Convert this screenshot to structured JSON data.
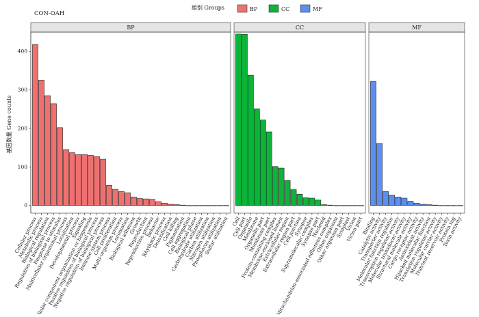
{
  "chart_data": {
    "type": "bar",
    "title": "CON-OAH",
    "ylabel": "基因数量  Gene counts",
    "ylim": [
      -20,
      450
    ],
    "yticks": [
      0,
      100,
      200,
      300,
      400
    ],
    "grid": false,
    "legend": {
      "title": "组别  Groups",
      "position": "top",
      "entries": [
        {
          "name": "BP",
          "color": "#f07070"
        },
        {
          "name": "CC",
          "color": "#0cb43a"
        },
        {
          "name": "MF",
          "color": "#5b8ff0"
        }
      ]
    },
    "panels": [
      {
        "name": "BP",
        "color": "#f07070",
        "categories": [
          "Cellular process",
          "Metabolic process",
          "Biological regulation",
          "Regulation of biological process",
          "Response to stimulus",
          "Multicellular organismal process",
          "Localization",
          "Developmental process",
          "Signaling",
          "Cellular component organization or biogenesis",
          "Positive regulation of biological process",
          "Negative regulation of biological process",
          "Immune system process",
          "Cell proliferation",
          "Multi-organism process",
          "Locomotion",
          "Biological adhesion",
          "Growth",
          "Reproduction",
          "Reproductive process",
          "Behavior",
          "Rhythmic process",
          "Detoxification",
          "Cell killing",
          "Pigmentation",
          "Cell aggregation",
          "Biological phase",
          "Carbohydrate utilization",
          "Carbon utilization",
          "Nitrogen utilization",
          "Phosphorus utilization",
          "Sulfur utilization"
        ],
        "values": [
          418,
          325,
          285,
          264,
          202,
          145,
          137,
          132,
          132,
          130,
          127,
          120,
          52,
          42,
          36,
          33,
          22,
          18,
          17,
          16,
          10,
          6,
          3,
          2,
          1,
          0,
          0,
          0,
          0,
          0,
          0,
          0
        ]
      },
      {
        "name": "CC",
        "color": "#0cb43a",
        "categories": [
          "Cell",
          "Cell part",
          "Organelle",
          "Membrane",
          "Organelle part",
          "Membrane part",
          "Protein-containing complex",
          "Membrane-enclosed lumen",
          "Extracellular region",
          "Extracellular region part",
          "Cell junction",
          "Synapse",
          "Supramolecular complex",
          "Synapse part",
          "Nucleoid",
          "Mitochondrion-associated adherens complex",
          "Other organism",
          "Other organism part",
          "Symplast",
          "Virion",
          "Virion part"
        ],
        "values": [
          445,
          444,
          338,
          251,
          222,
          191,
          101,
          97,
          65,
          41,
          29,
          20,
          19,
          14,
          2,
          1,
          0,
          0,
          0,
          0,
          0
        ]
      },
      {
        "name": "MF",
        "color": "#5b8ff0",
        "categories": [
          "Binding",
          "Catalytic activity",
          "Transporter activity",
          "Molecular function regulator",
          "Transcription regulator activity",
          "Molecular transducer activity",
          "Structural molecule activity",
          "Cargo receptor activity",
          "Antioxidant activity",
          "Hijacked molecular function",
          "Translation regulator activity",
          "Molecular carrier activity",
          "Nutrient reservoir activity",
          "Protein tag",
          "Toxin activity"
        ],
        "values": [
          322,
          161,
          36,
          27,
          22,
          19,
          11,
          6,
          3,
          2,
          1,
          0,
          0,
          0,
          0
        ]
      }
    ]
  }
}
